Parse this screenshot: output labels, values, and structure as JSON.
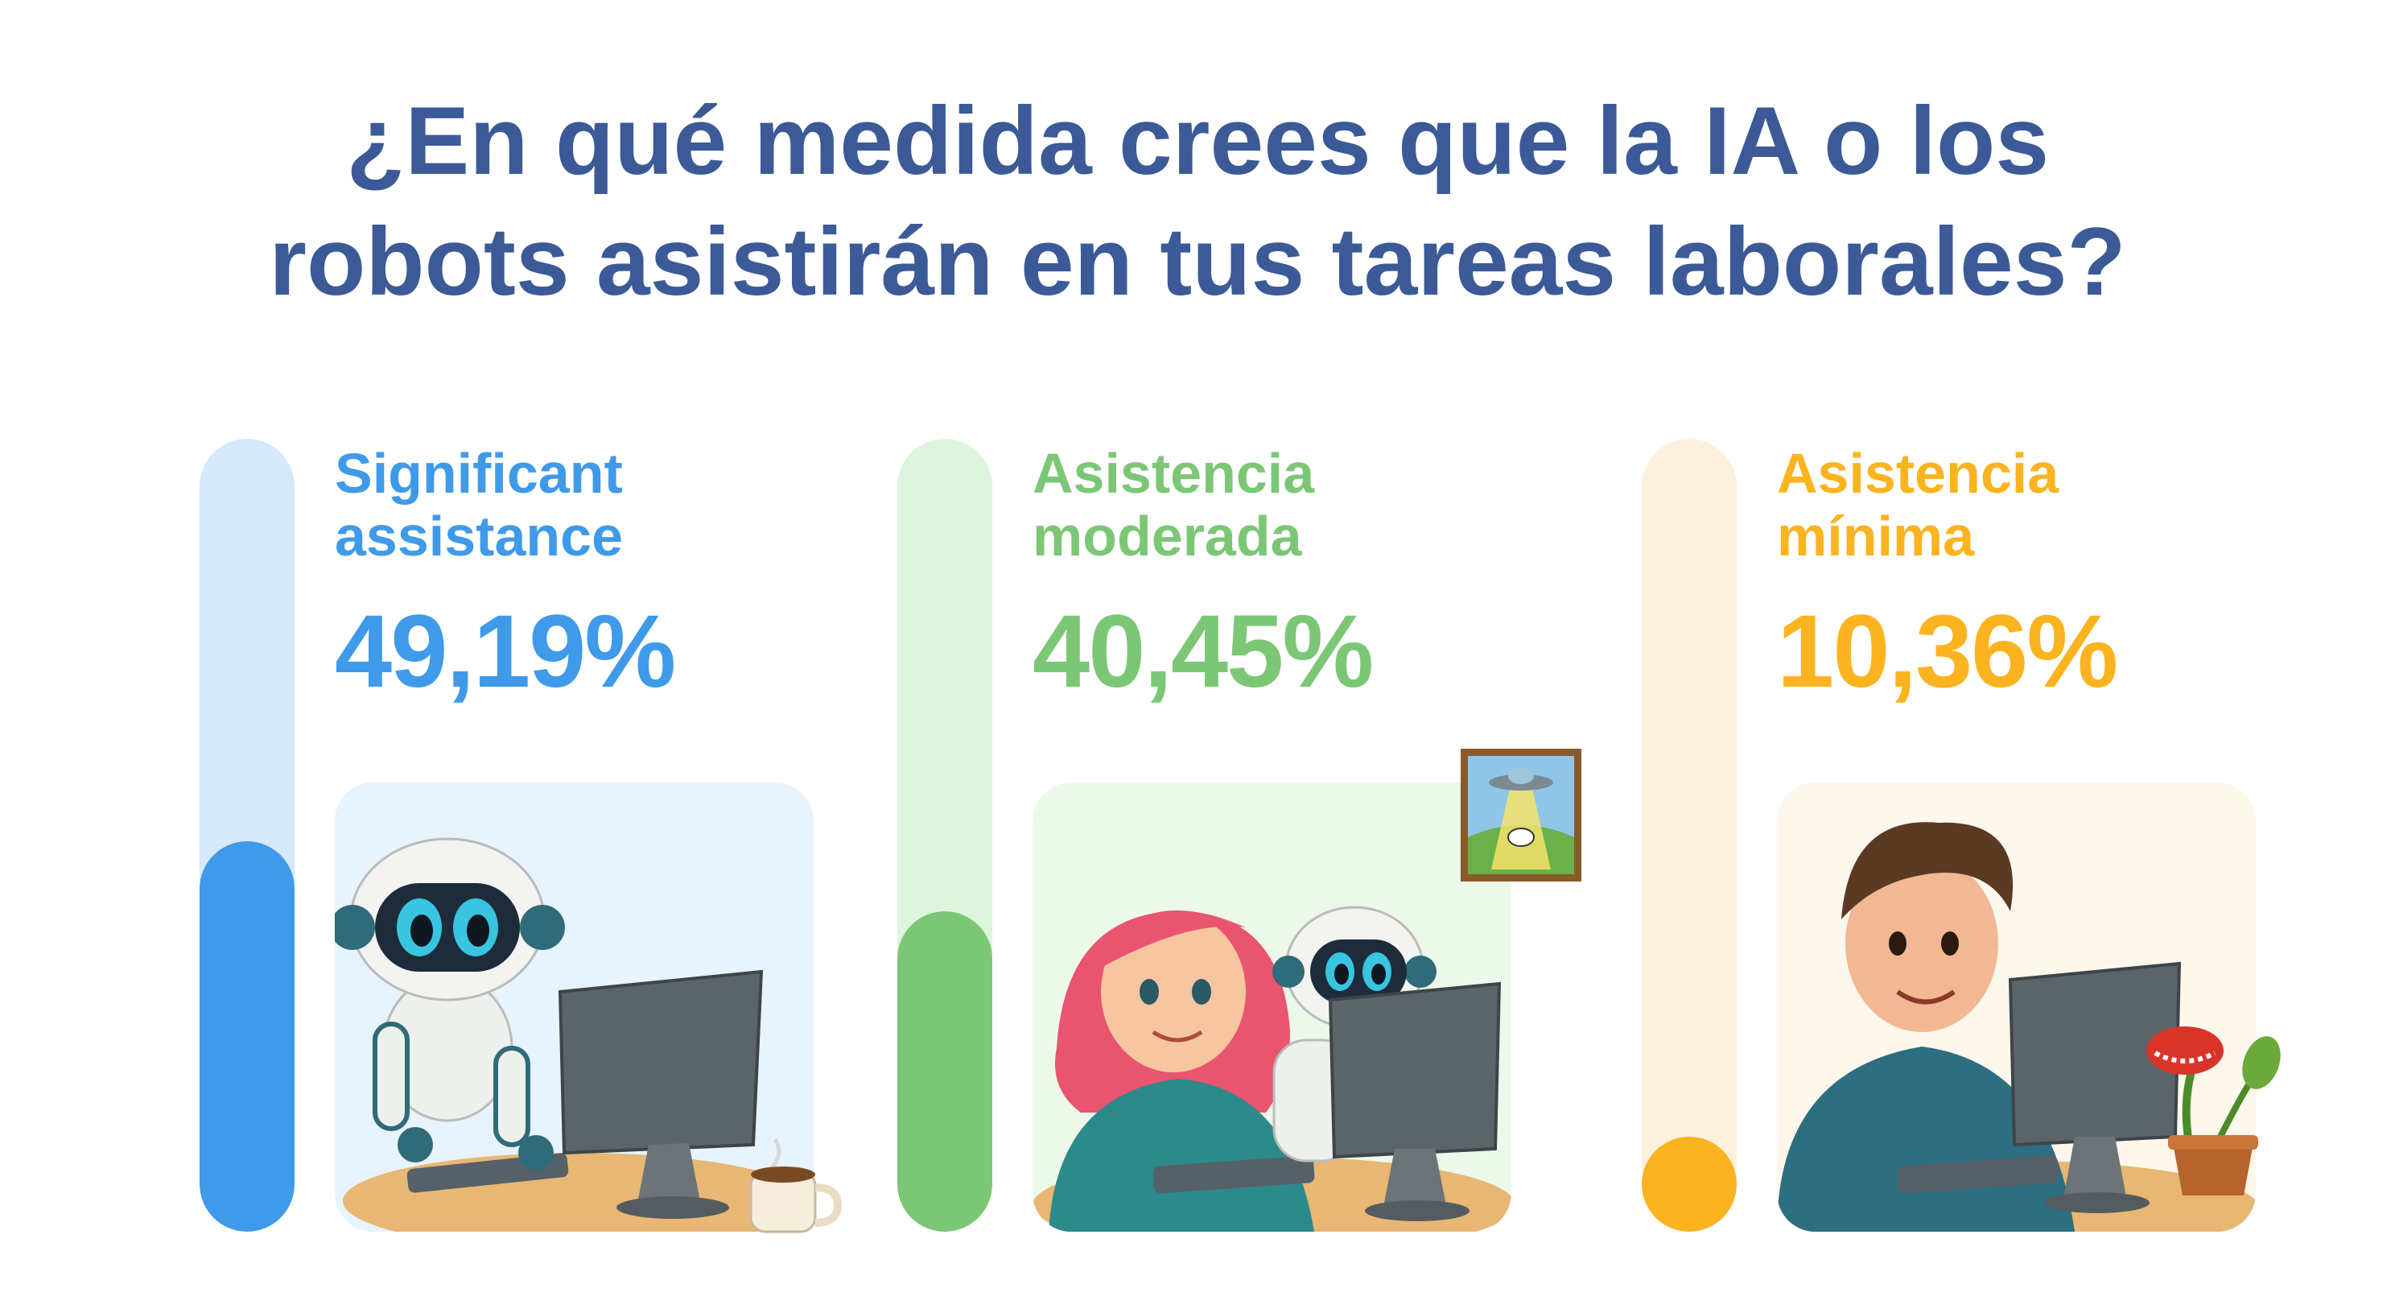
{
  "title_line1": "¿En qué medida crees que la IA o los",
  "title_line2": "robots asistirán en tus tareas laborales?",
  "chart_data": {
    "type": "bar",
    "title": "¿En qué medida crees que la IA o los robots asistirán en tus tareas laborales?",
    "categories": [
      "Significant assistance",
      "Asistencia moderada",
      "Asistencia mínima"
    ],
    "values": [
      49.19,
      40.45,
      10.36
    ],
    "ylim": [
      0,
      100
    ],
    "items": [
      {
        "label_line1": "Significant",
        "label_line2": "assistance",
        "value": 49.19,
        "value_label": "49,19%",
        "color": "#3f9ae9",
        "track_color": "#d6e9fb",
        "card_color": "#e7f3fd",
        "illustration": "robot-at-computer"
      },
      {
        "label_line1": "Asistencia",
        "label_line2": "moderada",
        "value": 40.45,
        "value_label": "40,45%",
        "color": "#7cc776",
        "track_color": "#dff4dd",
        "card_color": "#ecf8ea",
        "illustration": "woman-and-robot-at-computer"
      },
      {
        "label_line1": "Asistencia",
        "label_line2": "mínima",
        "value": 10.36,
        "value_label": "10,36%",
        "color": "#fbb320",
        "track_color": "#fdf1de",
        "card_color": "#fef7ec",
        "illustration": "man-at-computer"
      }
    ]
  },
  "colors": {
    "title": "#3b5a97"
  }
}
